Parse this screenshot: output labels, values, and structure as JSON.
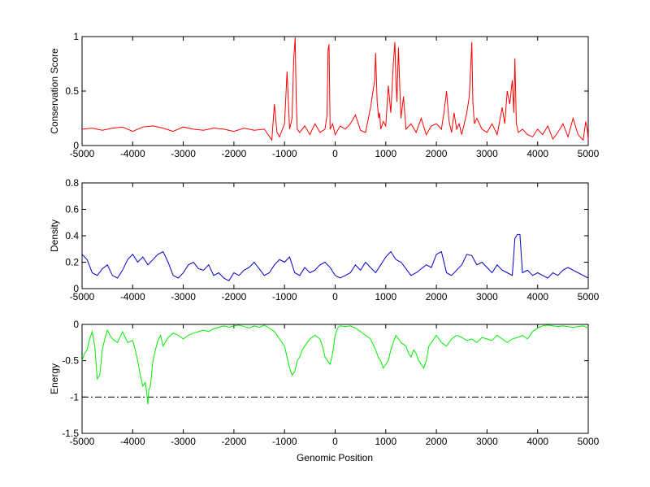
{
  "figure": {
    "background": "#ffffff",
    "xlabel": "Genomic Position"
  },
  "chart_data": [
    {
      "type": "line",
      "ylabel": "Conservation Score",
      "xlim": [
        -5000,
        5000
      ],
      "ylim": [
        0,
        1
      ],
      "xticks": [
        -5000,
        -4000,
        -3000,
        -2000,
        -1000,
        0,
        1000,
        2000,
        3000,
        4000,
        5000
      ],
      "yticks": [
        0,
        0.5,
        1
      ],
      "ytick_labels": [
        "0",
        "0.5",
        "1"
      ],
      "grid": false,
      "series": [
        {
          "color": "#ff0000",
          "x": [
            -5000,
            -4800,
            -4600,
            -4400,
            -4200,
            -4000,
            -3800,
            -3600,
            -3400,
            -3200,
            -3000,
            -2800,
            -2600,
            -2400,
            -2200,
            -2000,
            -1800,
            -1600,
            -1400,
            -1250,
            -1200,
            -1150,
            -1100,
            -1000,
            -950,
            -900,
            -850,
            -820,
            -790,
            -770,
            -750,
            -700,
            -600,
            -500,
            -400,
            -300,
            -200,
            -160,
            -140,
            -120,
            -100,
            -50,
            0,
            100,
            200,
            300,
            400,
            500,
            600,
            700,
            780,
            800,
            830,
            860,
            880,
            900,
            950,
            1000,
            1050,
            1100,
            1150,
            1180,
            1200,
            1220,
            1250,
            1280,
            1300,
            1350,
            1400,
            1500,
            1600,
            1700,
            1800,
            1900,
            2000,
            2100,
            2150,
            2200,
            2250,
            2300,
            2350,
            2400,
            2450,
            2500,
            2600,
            2650,
            2680,
            2700,
            2720,
            2750,
            2800,
            2900,
            3000,
            3100,
            3200,
            3300,
            3350,
            3400,
            3450,
            3500,
            3530,
            3550,
            3580,
            3620,
            3700,
            3800,
            3900,
            4000,
            4100,
            4200,
            4300,
            4400,
            4500,
            4600,
            4700,
            4800,
            4900,
            4950,
            4980,
            5000
          ],
          "values": [
            0.15,
            0.16,
            0.14,
            0.16,
            0.17,
            0.13,
            0.17,
            0.18,
            0.16,
            0.13,
            0.17,
            0.15,
            0.14,
            0.16,
            0.15,
            0.13,
            0.16,
            0.14,
            0.15,
            0.05,
            0.38,
            0.12,
            0.08,
            0.2,
            0.68,
            0.15,
            0.25,
            0.78,
            0.99,
            0.45,
            0.15,
            0.12,
            0.18,
            0.1,
            0.2,
            0.12,
            0.15,
            0.28,
            0.88,
            0.93,
            0.15,
            0.2,
            0.1,
            0.18,
            0.15,
            0.2,
            0.28,
            0.14,
            0.12,
            0.35,
            0.6,
            0.85,
            0.4,
            0.25,
            0.3,
            0.15,
            0.22,
            0.18,
            0.55,
            0.3,
            0.75,
            0.95,
            0.6,
            0.4,
            0.9,
            0.5,
            0.25,
            0.45,
            0.15,
            0.2,
            0.12,
            0.25,
            0.1,
            0.18,
            0.2,
            0.15,
            0.3,
            0.5,
            0.22,
            0.12,
            0.3,
            0.15,
            0.2,
            0.1,
            0.3,
            0.45,
            0.75,
            0.95,
            0.4,
            0.2,
            0.25,
            0.15,
            0.12,
            0.2,
            0.1,
            0.35,
            0.2,
            0.5,
            0.38,
            0.6,
            0.3,
            0.8,
            0.2,
            0.12,
            0.15,
            0.1,
            0.08,
            0.15,
            0.1,
            0.18,
            0.06,
            0.12,
            0.2,
            0.08,
            0.25,
            0.1,
            0.05,
            0.22,
            0.15,
            0.05
          ]
        }
      ]
    },
    {
      "type": "line",
      "ylabel": "Density",
      "xlim": [
        -5000,
        5000
      ],
      "ylim": [
        0,
        0.8
      ],
      "xticks": [
        -5000,
        -4000,
        -3000,
        -2000,
        -1000,
        0,
        1000,
        2000,
        3000,
        4000,
        5000
      ],
      "yticks": [
        0,
        0.2,
        0.4,
        0.6,
        0.8
      ],
      "ytick_labels": [
        "0",
        "0.2",
        "0.4",
        "0.6",
        "0.8"
      ],
      "grid": false,
      "series": [
        {
          "color": "#0000cc",
          "x": [
            -5000,
            -4900,
            -4800,
            -4700,
            -4600,
            -4500,
            -4400,
            -4300,
            -4200,
            -4100,
            -4000,
            -3900,
            -3800,
            -3700,
            -3600,
            -3500,
            -3400,
            -3300,
            -3200,
            -3100,
            -3000,
            -2900,
            -2800,
            -2700,
            -2600,
            -2500,
            -2400,
            -2300,
            -2200,
            -2100,
            -2000,
            -1900,
            -1800,
            -1700,
            -1600,
            -1500,
            -1400,
            -1300,
            -1200,
            -1100,
            -1000,
            -900,
            -800,
            -700,
            -600,
            -500,
            -400,
            -300,
            -200,
            -100,
            0,
            100,
            200,
            300,
            400,
            500,
            600,
            700,
            800,
            900,
            1000,
            1100,
            1200,
            1300,
            1400,
            1500,
            1600,
            1700,
            1800,
            1900,
            2000,
            2100,
            2200,
            2300,
            2400,
            2500,
            2600,
            2700,
            2800,
            2900,
            3000,
            3100,
            3200,
            3300,
            3400,
            3500,
            3550,
            3600,
            3650,
            3700,
            3800,
            3900,
            4000,
            4100,
            4200,
            4300,
            4400,
            4500,
            4600,
            4700,
            4800,
            4900,
            5000
          ],
          "values": [
            0.26,
            0.22,
            0.12,
            0.1,
            0.15,
            0.18,
            0.1,
            0.08,
            0.14,
            0.22,
            0.26,
            0.2,
            0.24,
            0.18,
            0.22,
            0.26,
            0.28,
            0.2,
            0.1,
            0.08,
            0.12,
            0.18,
            0.2,
            0.15,
            0.14,
            0.18,
            0.1,
            0.12,
            0.08,
            0.06,
            0.12,
            0.1,
            0.14,
            0.16,
            0.2,
            0.15,
            0.1,
            0.12,
            0.18,
            0.22,
            0.2,
            0.24,
            0.12,
            0.1,
            0.16,
            0.12,
            0.14,
            0.18,
            0.2,
            0.16,
            0.1,
            0.08,
            0.1,
            0.12,
            0.18,
            0.14,
            0.2,
            0.16,
            0.12,
            0.18,
            0.24,
            0.28,
            0.22,
            0.2,
            0.15,
            0.1,
            0.12,
            0.15,
            0.18,
            0.16,
            0.26,
            0.28,
            0.12,
            0.1,
            0.14,
            0.18,
            0.26,
            0.25,
            0.18,
            0.2,
            0.16,
            0.12,
            0.18,
            0.14,
            0.12,
            0.1,
            0.38,
            0.41,
            0.41,
            0.12,
            0.14,
            0.1,
            0.12,
            0.1,
            0.08,
            0.12,
            0.1,
            0.14,
            0.16,
            0.14,
            0.12,
            0.1,
            0.08
          ]
        }
      ]
    },
    {
      "type": "line",
      "ylabel": "Energy",
      "xlim": [
        -5000,
        5000
      ],
      "ylim": [
        -1.5,
        0
      ],
      "xticks": [
        -5000,
        -4000,
        -3000,
        -2000,
        -1000,
        0,
        1000,
        2000,
        3000,
        4000,
        5000
      ],
      "yticks": [
        -1.5,
        -1,
        -0.5,
        0
      ],
      "ytick_labels": [
        "-1.5",
        "-1",
        "-0.5",
        "0"
      ],
      "grid": false,
      "series": [
        {
          "color": "#00ee00",
          "x": [
            -5000,
            -4950,
            -4900,
            -4850,
            -4800,
            -4750,
            -4700,
            -4650,
            -4600,
            -4550,
            -4500,
            -4450,
            -4400,
            -4300,
            -4200,
            -4100,
            -4000,
            -3950,
            -3900,
            -3850,
            -3800,
            -3750,
            -3720,
            -3700,
            -3680,
            -3650,
            -3600,
            -3550,
            -3500,
            -3450,
            -3400,
            -3300,
            -3200,
            -3100,
            -3000,
            -2900,
            -2800,
            -2700,
            -2600,
            -2500,
            -2400,
            -2300,
            -2200,
            -2100,
            -2000,
            -1900,
            -1800,
            -1700,
            -1600,
            -1500,
            -1400,
            -1300,
            -1200,
            -1100,
            -1000,
            -950,
            -900,
            -850,
            -800,
            -750,
            -700,
            -650,
            -600,
            -500,
            -400,
            -300,
            -250,
            -200,
            -150,
            -100,
            -50,
            0,
            50,
            100,
            200,
            300,
            400,
            500,
            600,
            700,
            800,
            850,
            900,
            950,
            1000,
            1050,
            1100,
            1150,
            1200,
            1300,
            1400,
            1450,
            1500,
            1550,
            1600,
            1650,
            1700,
            1750,
            1800,
            1850,
            1900,
            2000,
            2100,
            2200,
            2300,
            2400,
            2500,
            2600,
            2700,
            2800,
            2900,
            3000,
            3100,
            3200,
            3300,
            3400,
            3500,
            3600,
            3700,
            3800,
            3900,
            4000,
            4100,
            4200,
            4300,
            4400,
            4500,
            4600,
            4700,
            4800,
            4900,
            5000
          ],
          "values": [
            -0.5,
            -0.4,
            -0.35,
            -0.2,
            -0.1,
            -0.3,
            -0.75,
            -0.7,
            -0.35,
            -0.2,
            -0.08,
            -0.15,
            -0.2,
            -0.25,
            -0.1,
            -0.25,
            -0.22,
            -0.35,
            -0.5,
            -0.7,
            -0.85,
            -0.8,
            -0.95,
            -1.1,
            -0.9,
            -0.85,
            -0.5,
            -0.35,
            -0.22,
            -0.15,
            -0.3,
            -0.18,
            -0.12,
            -0.15,
            -0.2,
            -0.15,
            -0.12,
            -0.1,
            -0.08,
            -0.1,
            -0.06,
            -0.04,
            -0.02,
            -0.04,
            -0.02,
            -0.01,
            -0.03,
            -0.05,
            -0.02,
            -0.04,
            -0.01,
            -0.05,
            -0.1,
            -0.2,
            -0.3,
            -0.45,
            -0.6,
            -0.7,
            -0.65,
            -0.5,
            -0.45,
            -0.35,
            -0.3,
            -0.2,
            -0.15,
            -0.2,
            -0.3,
            -0.45,
            -0.5,
            -0.55,
            -0.4,
            -0.15,
            -0.05,
            -0.02,
            -0.03,
            -0.02,
            -0.05,
            -0.1,
            -0.15,
            -0.2,
            -0.35,
            -0.45,
            -0.5,
            -0.6,
            -0.55,
            -0.5,
            -0.35,
            -0.25,
            -0.15,
            -0.25,
            -0.3,
            -0.4,
            -0.45,
            -0.35,
            -0.4,
            -0.5,
            -0.55,
            -0.6,
            -0.5,
            -0.3,
            -0.25,
            -0.15,
            -0.25,
            -0.3,
            -0.2,
            -0.15,
            -0.18,
            -0.22,
            -0.2,
            -0.25,
            -0.18,
            -0.2,
            -0.22,
            -0.15,
            -0.2,
            -0.25,
            -0.2,
            -0.18,
            -0.15,
            -0.2,
            -0.1,
            -0.05,
            -0.02,
            -0.01,
            -0.02,
            -0.03,
            -0.02,
            -0.03,
            -0.04,
            -0.03,
            -0.02,
            -0.05
          ]
        }
      ],
      "reference_line": {
        "y": -1,
        "style": "dash-dot",
        "color": "#000000"
      }
    }
  ]
}
